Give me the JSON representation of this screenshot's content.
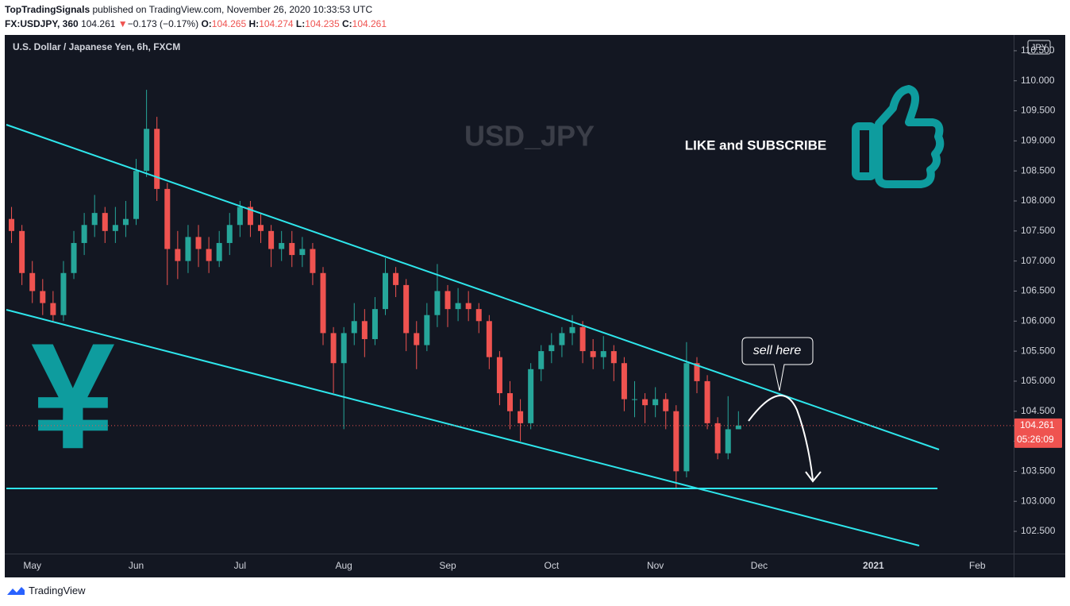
{
  "header": {
    "author": "TopTradingSignals",
    "published": " published on TradingView.com, November 26, 2020 10:33:53 UTC",
    "symbol": "FX:USDJPY, 360",
    "price": "104.261",
    "arrow": "▼",
    "change": "−0.173 (−0.17%)",
    "o_label": "O:",
    "o": "104.265",
    "h_label": "H:",
    "h": "104.274",
    "l_label": "L:",
    "l": "104.235",
    "c_label": "C:",
    "c": "104.261"
  },
  "chart_data": {
    "type": "candlestick",
    "title": "U.S. Dollar / Japanese Yen, 6h, FXCM",
    "watermark": "USD_JPY",
    "currency": "JPY",
    "up_color": "#26a69a",
    "down_color": "#ef5350",
    "categories": [
      null,
      null,
      "May",
      null,
      null,
      null,
      null,
      null,
      null,
      null,
      null,
      null,
      "Jun",
      null,
      null,
      null,
      null,
      null,
      null,
      null,
      null,
      null,
      "Jul",
      null,
      null,
      null,
      null,
      null,
      null,
      null,
      null,
      null,
      "Aug",
      null,
      null,
      null,
      null,
      null,
      null,
      null,
      null,
      null,
      "Sep",
      null,
      null,
      null,
      null,
      null,
      null,
      null,
      null,
      null,
      "Oct",
      null,
      null,
      null,
      null,
      null,
      null,
      null,
      null,
      null,
      "Nov",
      null,
      null,
      null,
      null,
      null,
      null,
      null,
      null,
      null,
      "Dec",
      null,
      null,
      null,
      null,
      null,
      null,
      null,
      null,
      null,
      null,
      "2021",
      null,
      null,
      null,
      null,
      null,
      null,
      null,
      null,
      null,
      "Feb",
      null,
      null,
      null
    ],
    "open": [
      107.7,
      107.5,
      106.8,
      106.5,
      106.3,
      106.1,
      106.8,
      107.3,
      107.6,
      107.8,
      107.5,
      107.6,
      107.7,
      108.5,
      109.2,
      108.2,
      107.2,
      107.0,
      107.4,
      107.2,
      107.0,
      107.3,
      107.6,
      107.9,
      107.6,
      107.5,
      107.2,
      107.3,
      107.1,
      107.2,
      106.8,
      105.8,
      105.3,
      105.8,
      106.0,
      105.7,
      106.2,
      106.8,
      106.6,
      105.8,
      105.6,
      106.1,
      106.5,
      106.2,
      106.3,
      106.2,
      106.0,
      105.4,
      104.8,
      104.5,
      104.3,
      105.2,
      105.5,
      105.6,
      105.8,
      105.9,
      105.5,
      105.4,
      105.5,
      105.3,
      104.7,
      104.7,
      104.6,
      104.7,
      104.5,
      103.5,
      105.3,
      105.0,
      104.3,
      103.8,
      104.2,
      null,
      null,
      null,
      null,
      null,
      null,
      null,
      null,
      null,
      null,
      null,
      null,
      null,
      null,
      null,
      null,
      null,
      null,
      null,
      null,
      null,
      null,
      null,
      null,
      null,
      null
    ],
    "high": [
      107.9,
      107.6,
      107.0,
      106.7,
      106.5,
      107.0,
      107.5,
      107.8,
      108.1,
      107.9,
      107.9,
      108.0,
      108.7,
      109.85,
      109.4,
      108.3,
      107.5,
      107.6,
      107.6,
      107.4,
      107.5,
      107.8,
      108.0,
      108.0,
      107.8,
      107.6,
      107.5,
      107.5,
      107.4,
      107.3,
      106.9,
      105.9,
      105.9,
      106.3,
      106.2,
      106.4,
      107.05,
      106.9,
      106.7,
      106.0,
      106.3,
      106.95,
      106.6,
      106.55,
      106.5,
      106.3,
      106.1,
      105.5,
      105.0,
      104.7,
      105.3,
      105.6,
      105.8,
      105.9,
      106.1,
      106.0,
      105.7,
      105.75,
      105.6,
      105.4,
      105.0,
      104.8,
      104.9,
      104.8,
      104.6,
      105.65,
      105.4,
      105.1,
      104.4,
      104.75,
      104.5,
      null,
      null,
      null,
      null,
      null,
      null,
      null,
      null,
      null,
      null,
      null,
      null,
      null,
      null,
      null,
      null,
      null,
      null,
      null,
      null,
      null,
      null,
      null,
      null,
      null,
      null
    ],
    "low": [
      107.3,
      106.6,
      106.3,
      106.1,
      106.0,
      106.0,
      106.7,
      107.1,
      107.4,
      107.3,
      107.3,
      107.4,
      107.6,
      108.4,
      108.0,
      106.6,
      106.7,
      106.8,
      106.9,
      106.8,
      106.9,
      107.1,
      107.4,
      107.4,
      107.3,
      106.9,
      107.0,
      106.9,
      106.9,
      106.6,
      105.6,
      104.8,
      104.2,
      105.6,
      105.4,
      105.6,
      106.1,
      106.4,
      105.5,
      105.2,
      105.5,
      105.9,
      105.9,
      106.0,
      106.0,
      105.8,
      105.2,
      104.6,
      104.2,
      104.0,
      104.2,
      105.0,
      105.3,
      105.4,
      105.6,
      105.3,
      105.2,
      105.2,
      105.0,
      104.5,
      104.4,
      104.3,
      104.4,
      104.2,
      103.2,
      103.4,
      104.8,
      104.2,
      103.7,
      103.7,
      104.2,
      null,
      null,
      null,
      null,
      null,
      null,
      null,
      null,
      null,
      null,
      null,
      null,
      null,
      null,
      null,
      null,
      null,
      null,
      null,
      null,
      null,
      null,
      null,
      null,
      null,
      null
    ],
    "close": [
      107.5,
      106.8,
      106.5,
      106.3,
      106.1,
      106.8,
      107.3,
      107.6,
      107.8,
      107.5,
      107.6,
      107.7,
      108.5,
      109.2,
      108.2,
      107.2,
      107.0,
      107.4,
      107.2,
      107.0,
      107.3,
      107.6,
      107.9,
      107.6,
      107.5,
      107.2,
      107.3,
      107.1,
      107.2,
      106.8,
      105.8,
      105.3,
      105.8,
      106.0,
      105.7,
      106.2,
      106.8,
      106.6,
      105.8,
      105.6,
      106.1,
      106.5,
      106.2,
      106.3,
      106.2,
      106.0,
      105.4,
      104.8,
      104.5,
      104.3,
      105.2,
      105.5,
      105.6,
      105.8,
      105.9,
      105.5,
      105.4,
      105.5,
      105.3,
      104.7,
      104.7,
      104.6,
      104.7,
      104.5,
      103.5,
      105.3,
      105.0,
      104.3,
      103.8,
      104.2,
      104.261,
      null,
      null,
      null,
      null,
      null,
      null,
      null,
      null,
      null,
      null,
      null,
      null,
      null,
      null,
      null,
      null,
      null,
      null,
      null,
      null,
      null,
      null,
      null,
      null,
      null,
      null
    ],
    "ylim": [
      102.13,
      110.75
    ],
    "yticks": [
      {
        "value": 102.5,
        "label": "102.500"
      },
      {
        "value": 103,
        "label": "103.000"
      },
      {
        "value": 103.5,
        "label": "103.500"
      },
      {
        "value": 104,
        "label": "104.000"
      },
      {
        "value": 104.5,
        "label": "104.500"
      },
      {
        "value": 105,
        "label": "105.000"
      },
      {
        "value": 105.5,
        "label": "105.500"
      },
      {
        "value": 106,
        "label": "106.000"
      },
      {
        "value": 106.5,
        "label": "106.500"
      },
      {
        "value": 107,
        "label": "107.000"
      },
      {
        "value": 107.5,
        "label": "107.500"
      },
      {
        "value": 108,
        "label": "108.000"
      },
      {
        "value": 108.5,
        "label": "108.500"
      },
      {
        "value": 109,
        "label": "109.000"
      },
      {
        "value": 109.5,
        "label": "109.500"
      },
      {
        "value": 110,
        "label": "110.000"
      },
      {
        "value": 110.5,
        "label": "110.500"
      }
    ],
    "last_price": 104.261,
    "countdown": "05:26:09",
    "annotations": {
      "cta": "LIKE and SUBSCRIBE",
      "callout": "sell here",
      "symbol": "¥"
    }
  },
  "footer": {
    "brand": "TradingView"
  }
}
